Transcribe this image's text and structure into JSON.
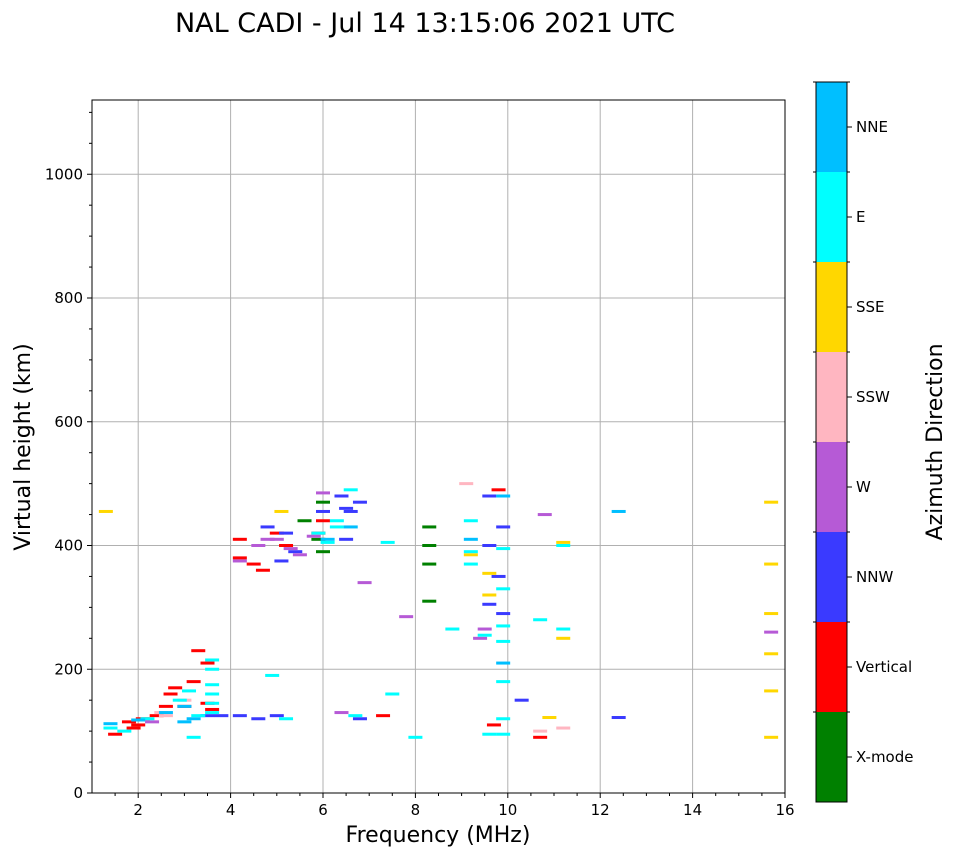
{
  "chart_data": {
    "type": "scatter",
    "title": "NAL CADI - Jul 14 13:15:06 2021 UTC",
    "xlabel": "Frequency (MHz)",
    "ylabel": "Virtual height (km)",
    "xlim": [
      1,
      16
    ],
    "ylim": [
      0,
      1120
    ],
    "xticks": [
      "2",
      "4",
      "6",
      "8",
      "10",
      "12",
      "14",
      "16"
    ],
    "yticks": [
      "0",
      "200",
      "400",
      "600",
      "800",
      "1000"
    ],
    "grid": true,
    "colorbar": {
      "label": "Azimuth Direction",
      "categories": [
        {
          "name": "X-mode",
          "color": "#008000"
        },
        {
          "name": "Vertical",
          "color": "#ff0000"
        },
        {
          "name": "NNW",
          "color": "#3a3aff"
        },
        {
          "name": "W",
          "color": "#b65ad6"
        },
        {
          "name": "SSW",
          "color": "#ffb6c1"
        },
        {
          "name": "SSE",
          "color": "#ffd700"
        },
        {
          "name": "E",
          "color": "#00ffff"
        },
        {
          "name": "NNE",
          "color": "#00bfff"
        }
      ]
    },
    "series": [
      {
        "name": "X-mode",
        "points": [
          [
            8.3,
            430
          ],
          [
            8.3,
            400
          ],
          [
            8.3,
            370
          ],
          [
            8.3,
            310
          ],
          [
            6.0,
            390
          ],
          [
            5.9,
            410
          ],
          [
            6.0,
            470
          ],
          [
            5.6,
            440
          ]
        ]
      },
      {
        "name": "Vertical",
        "points": [
          [
            1.8,
            115
          ],
          [
            1.9,
            105
          ],
          [
            2.0,
            110
          ],
          [
            2.1,
            120
          ],
          [
            2.4,
            125
          ],
          [
            2.6,
            140
          ],
          [
            2.7,
            160
          ],
          [
            2.8,
            170
          ],
          [
            3.0,
            140
          ],
          [
            3.2,
            180
          ],
          [
            3.5,
            210
          ],
          [
            3.6,
            135
          ],
          [
            3.5,
            145
          ],
          [
            3.3,
            230
          ],
          [
            4.2,
            410
          ],
          [
            4.2,
            380
          ],
          [
            4.5,
            370
          ],
          [
            4.7,
            360
          ],
          [
            5.2,
            400
          ],
          [
            5.0,
            420
          ],
          [
            5.9,
            420
          ],
          [
            6.0,
            440
          ],
          [
            7.3,
            125
          ],
          [
            9.7,
            110
          ],
          [
            9.8,
            490
          ],
          [
            10.7,
            90
          ],
          [
            1.5,
            95
          ]
        ]
      },
      {
        "name": "NNW",
        "points": [
          [
            3.5,
            125
          ],
          [
            3.8,
            125
          ],
          [
            4.2,
            125
          ],
          [
            4.6,
            120
          ],
          [
            5.0,
            125
          ],
          [
            5.2,
            420
          ],
          [
            5.4,
            390
          ],
          [
            6.0,
            455
          ],
          [
            6.4,
            480
          ],
          [
            6.5,
            460
          ],
          [
            6.5,
            410
          ],
          [
            6.6,
            455
          ],
          [
            6.8,
            470
          ],
          [
            6.8,
            120
          ],
          [
            9.6,
            305
          ],
          [
            9.6,
            480
          ],
          [
            9.8,
            350
          ],
          [
            9.9,
            290
          ],
          [
            9.9,
            430
          ],
          [
            10.3,
            150
          ],
          [
            12.4,
            122
          ],
          [
            5.1,
            375
          ],
          [
            4.8,
            430
          ],
          [
            9.6,
            400
          ]
        ]
      },
      {
        "name": "W",
        "points": [
          [
            4.2,
            375
          ],
          [
            4.6,
            400
          ],
          [
            5.0,
            410
          ],
          [
            5.3,
            395
          ],
          [
            5.5,
            385
          ],
          [
            5.8,
            415
          ],
          [
            6.4,
            130
          ],
          [
            6.0,
            485
          ],
          [
            6.9,
            340
          ],
          [
            7.8,
            285
          ],
          [
            9.4,
            250
          ],
          [
            9.5,
            265
          ],
          [
            10.8,
            450
          ],
          [
            15.7,
            260
          ],
          [
            2.3,
            115
          ],
          [
            4.8,
            410
          ]
        ]
      },
      {
        "name": "SSW",
        "points": [
          [
            2.5,
            130
          ],
          [
            2.6,
            125
          ],
          [
            9.1,
            500
          ],
          [
            10.7,
            100
          ],
          [
            11.2,
            105
          ],
          [
            3.0,
            150
          ]
        ]
      },
      {
        "name": "SSE",
        "points": [
          [
            1.3,
            455
          ],
          [
            5.1,
            455
          ],
          [
            9.6,
            355
          ],
          [
            9.6,
            320
          ],
          [
            9.2,
            385
          ],
          [
            10.9,
            122
          ],
          [
            11.2,
            250
          ],
          [
            11.2,
            405
          ],
          [
            15.7,
            470
          ],
          [
            15.7,
            370
          ],
          [
            15.7,
            290
          ],
          [
            15.7,
            225
          ],
          [
            15.7,
            165
          ],
          [
            15.7,
            90
          ]
        ]
      },
      {
        "name": "E",
        "points": [
          [
            1.4,
            105
          ],
          [
            1.7,
            100
          ],
          [
            2.2,
            120
          ],
          [
            2.9,
            150
          ],
          [
            3.1,
            165
          ],
          [
            3.3,
            125
          ],
          [
            3.6,
            175
          ],
          [
            3.6,
            160
          ],
          [
            3.6,
            145
          ],
          [
            3.6,
            130
          ],
          [
            3.6,
            200
          ],
          [
            3.6,
            215
          ],
          [
            5.2,
            120
          ],
          [
            5.9,
            420
          ],
          [
            6.1,
            405
          ],
          [
            6.3,
            430
          ],
          [
            6.3,
            440
          ],
          [
            6.6,
            490
          ],
          [
            6.7,
            125
          ],
          [
            7.4,
            405
          ],
          [
            7.5,
            160
          ],
          [
            8.0,
            90
          ],
          [
            8.8,
            265
          ],
          [
            9.2,
            440
          ],
          [
            9.2,
            390
          ],
          [
            9.2,
            370
          ],
          [
            9.5,
            255
          ],
          [
            9.6,
            95
          ],
          [
            9.9,
            95
          ],
          [
            9.9,
            120
          ],
          [
            9.9,
            180
          ],
          [
            9.9,
            245
          ],
          [
            9.9,
            270
          ],
          [
            9.9,
            330
          ],
          [
            9.9,
            395
          ],
          [
            10.7,
            280
          ],
          [
            11.2,
            265
          ],
          [
            11.2,
            400
          ],
          [
            4.9,
            190
          ],
          [
            3.2,
            90
          ]
        ]
      },
      {
        "name": "NNE",
        "points": [
          [
            1.4,
            112
          ],
          [
            2.0,
            118
          ],
          [
            2.6,
            130
          ],
          [
            3.0,
            140
          ],
          [
            3.2,
            120
          ],
          [
            3.0,
            115
          ],
          [
            6.6,
            430
          ],
          [
            6.1,
            410
          ],
          [
            9.9,
            210
          ],
          [
            9.9,
            480
          ],
          [
            12.4,
            455
          ],
          [
            9.2,
            410
          ]
        ]
      }
    ]
  }
}
